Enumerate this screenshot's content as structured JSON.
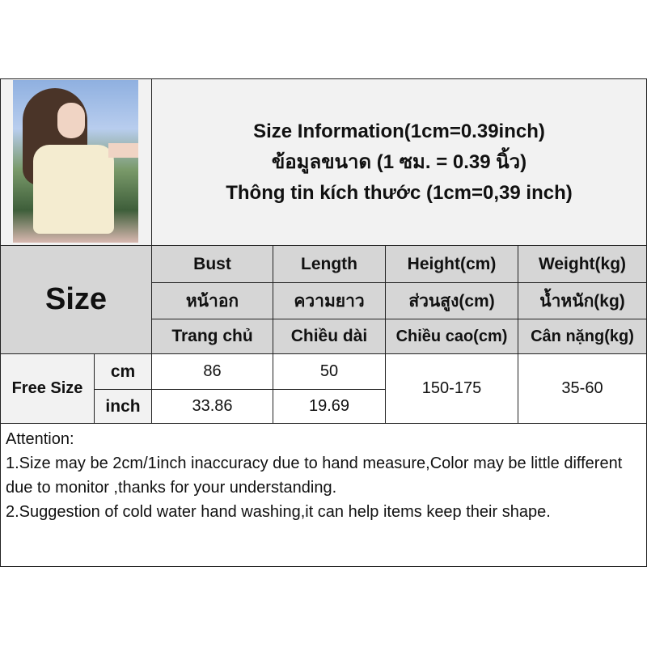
{
  "header": {
    "lines": [
      "Size Information(1cm=0.39inch)",
      "ข้อมูลขนาด (1 ซม. = 0.39 นิ้ว)",
      "Thông tin kích thước (1cm=0,39 inch)"
    ]
  },
  "photo": {
    "icon": "model-photo"
  },
  "size_label": "Size",
  "columns": [
    {
      "en": "Bust",
      "th": "หน้าอก",
      "vi": "Trang chủ"
    },
    {
      "en": "Length",
      "th": "ความยาว",
      "vi": "Chiều dài"
    },
    {
      "en": "Height(cm)",
      "th": "ส่วนสูง(cm)",
      "vi": "Chiều cao(cm)"
    },
    {
      "en": "Weight(kg)",
      "th": "น้ำหนัก(kg)",
      "vi": "Cân nặng(kg)"
    }
  ],
  "rows": {
    "size_name": "Free Size",
    "cm": {
      "unit": "cm",
      "bust": "86",
      "length": "50"
    },
    "inch": {
      "unit": "inch",
      "bust": "33.86",
      "length": "19.69"
    },
    "height": "150-175",
    "weight": "35-60"
  },
  "attention": {
    "title": "Attention:",
    "lines": [
      "1.Size may be 2cm/1inch inaccuracy due to hand measure,Color may be little different due to monitor ,thanks for your understanding.",
      "2.Suggestion of cold water hand washing,it can help items keep their shape."
    ]
  },
  "colors": {
    "header_gray": "#d6d6d6",
    "light_bg": "#f2f2f2",
    "border": "#222222"
  }
}
